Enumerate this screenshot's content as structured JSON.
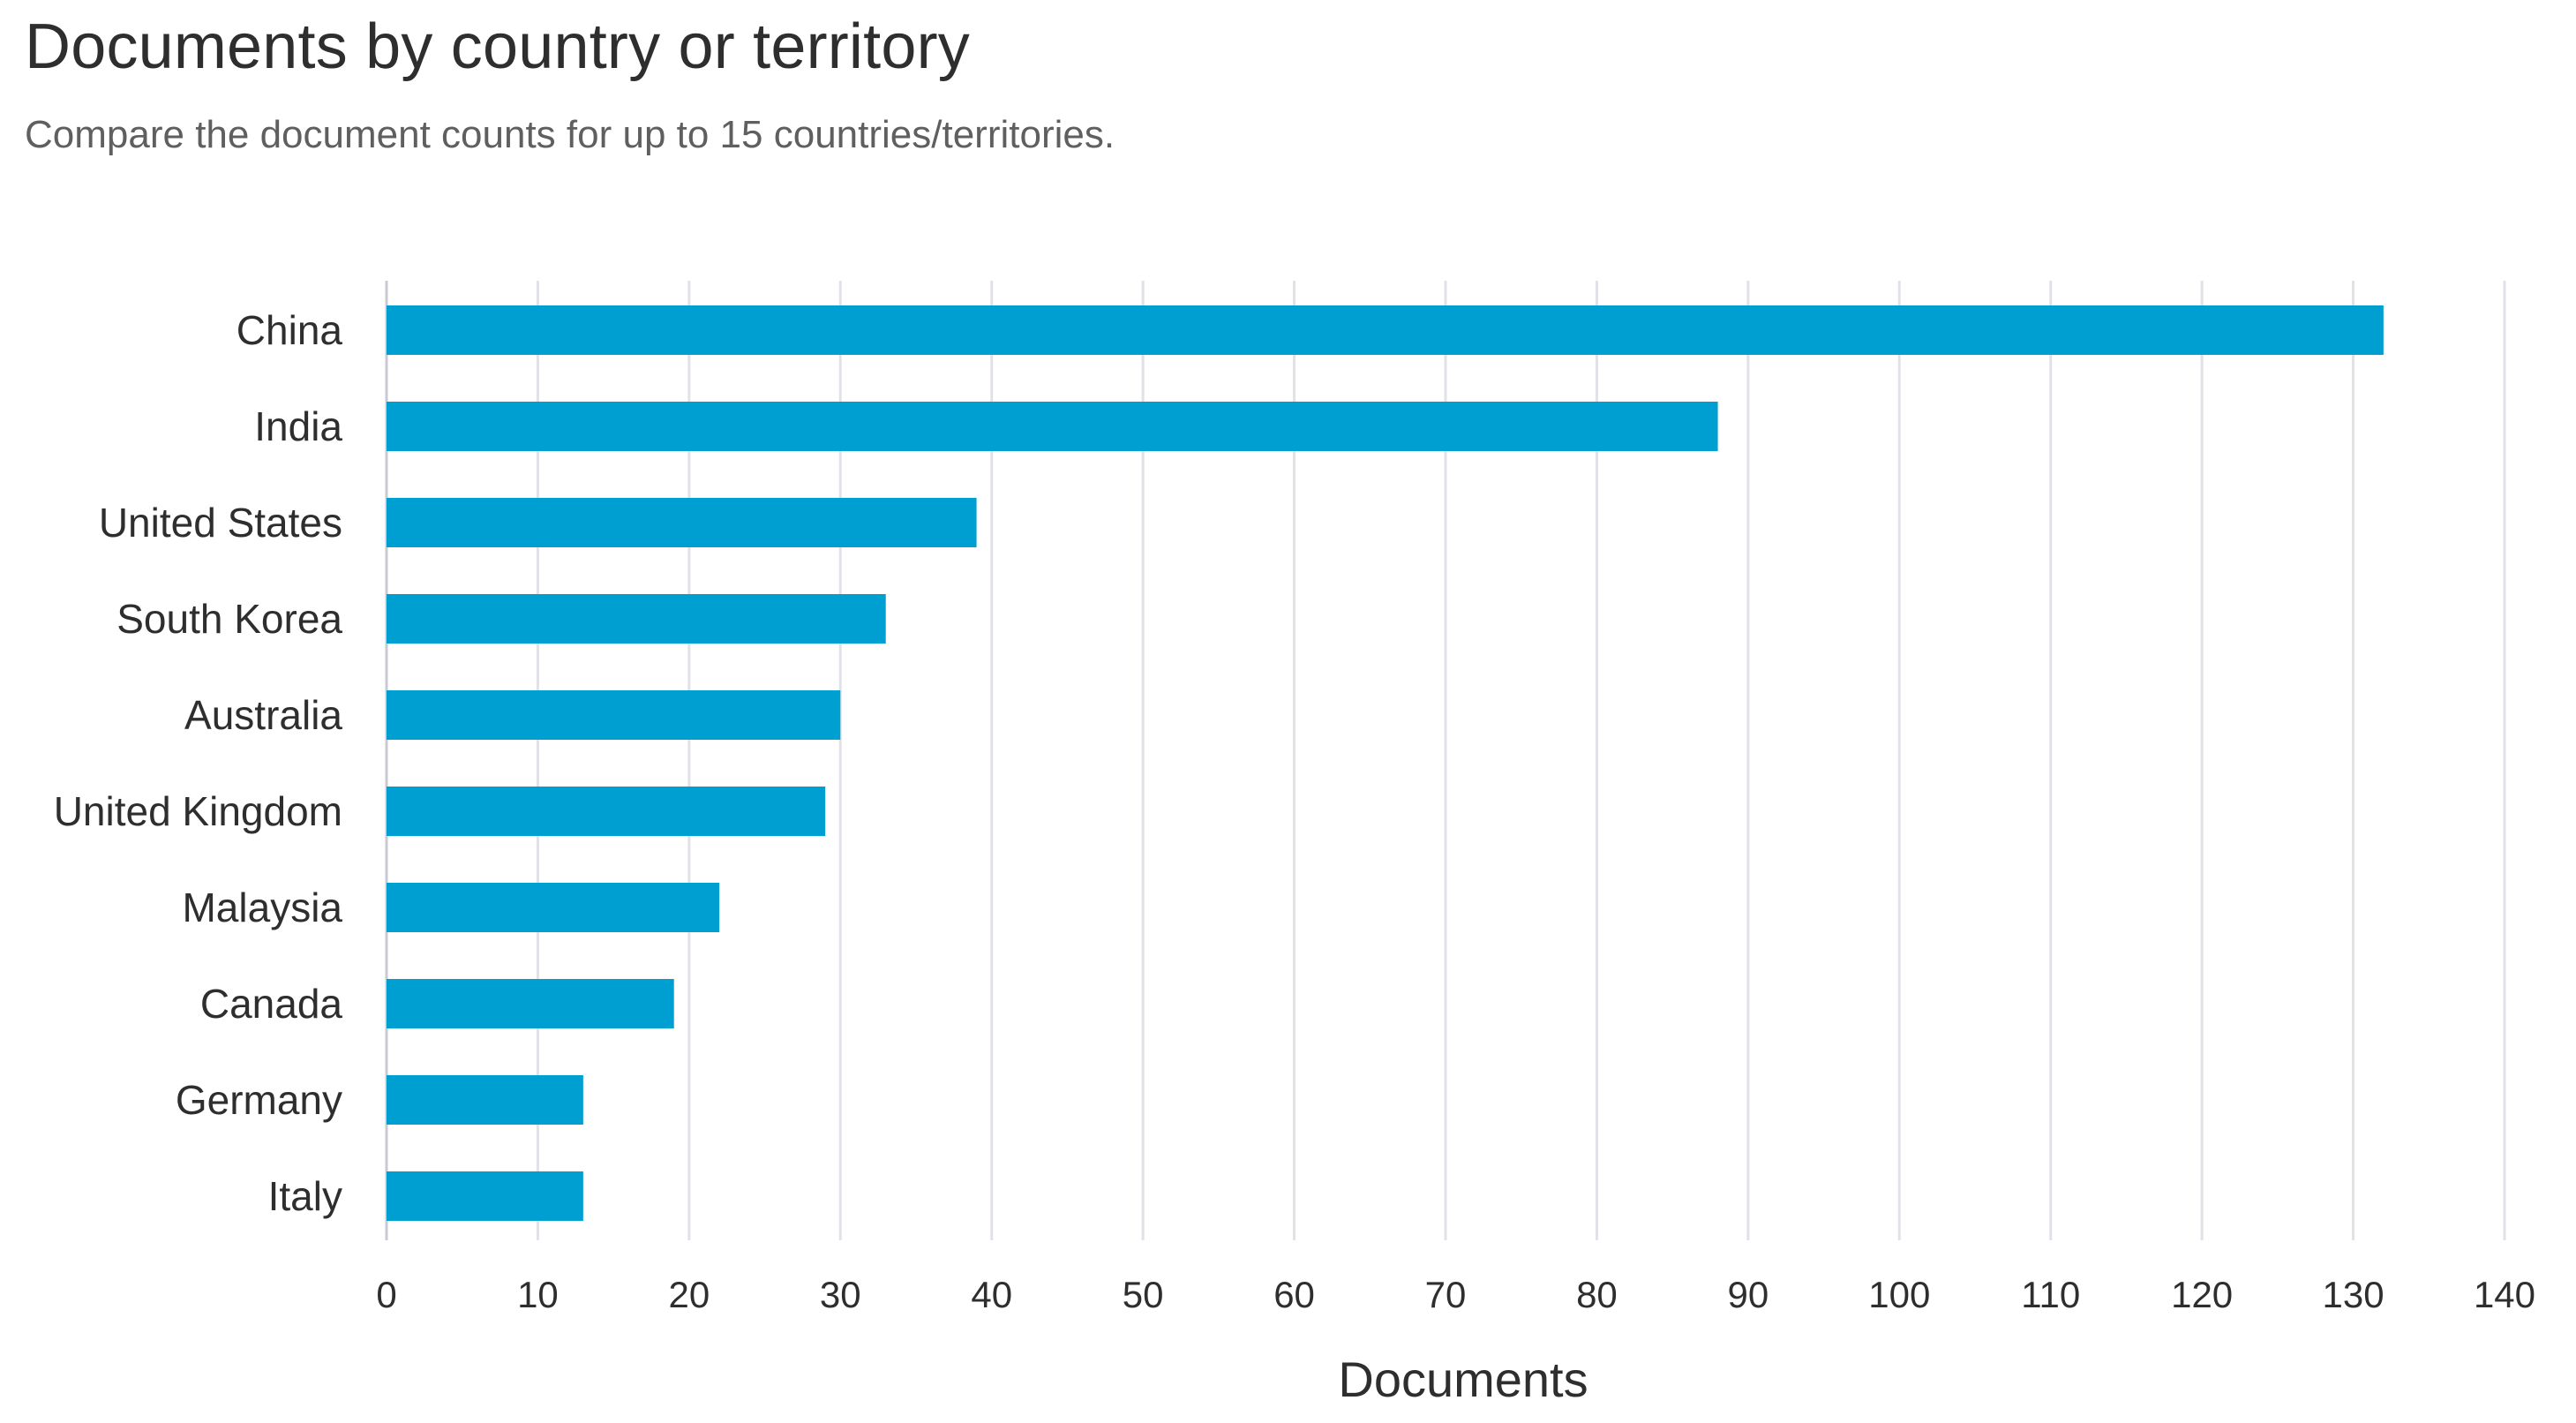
{
  "header": {
    "title": "Documents by country or territory",
    "subtitle": "Compare the document counts for up to 15 countries/territories."
  },
  "colors": {
    "bar": "#009fd1",
    "grid": "#e1e1e8",
    "axis": "#c9c9d6",
    "text": "#2e2e2e"
  },
  "chart_data": {
    "type": "bar",
    "orientation": "horizontal",
    "title": "Documents by country or territory",
    "subtitle": "Compare the document counts for up to 15 countries/territories.",
    "categories": [
      "China",
      "India",
      "United States",
      "South Korea",
      "Australia",
      "United Kingdom",
      "Malaysia",
      "Canada",
      "Germany",
      "Italy"
    ],
    "values": [
      132,
      88,
      39,
      33,
      30,
      29,
      22,
      19,
      13,
      13
    ],
    "xlabel": "Documents",
    "ylabel": "",
    "xlim": [
      0,
      140
    ],
    "xticks": [
      "0",
      "10",
      "20",
      "30",
      "40",
      "50",
      "60",
      "70",
      "80",
      "90",
      "100",
      "110",
      "120",
      "130",
      "140"
    ],
    "grid": true,
    "legend": "none"
  }
}
